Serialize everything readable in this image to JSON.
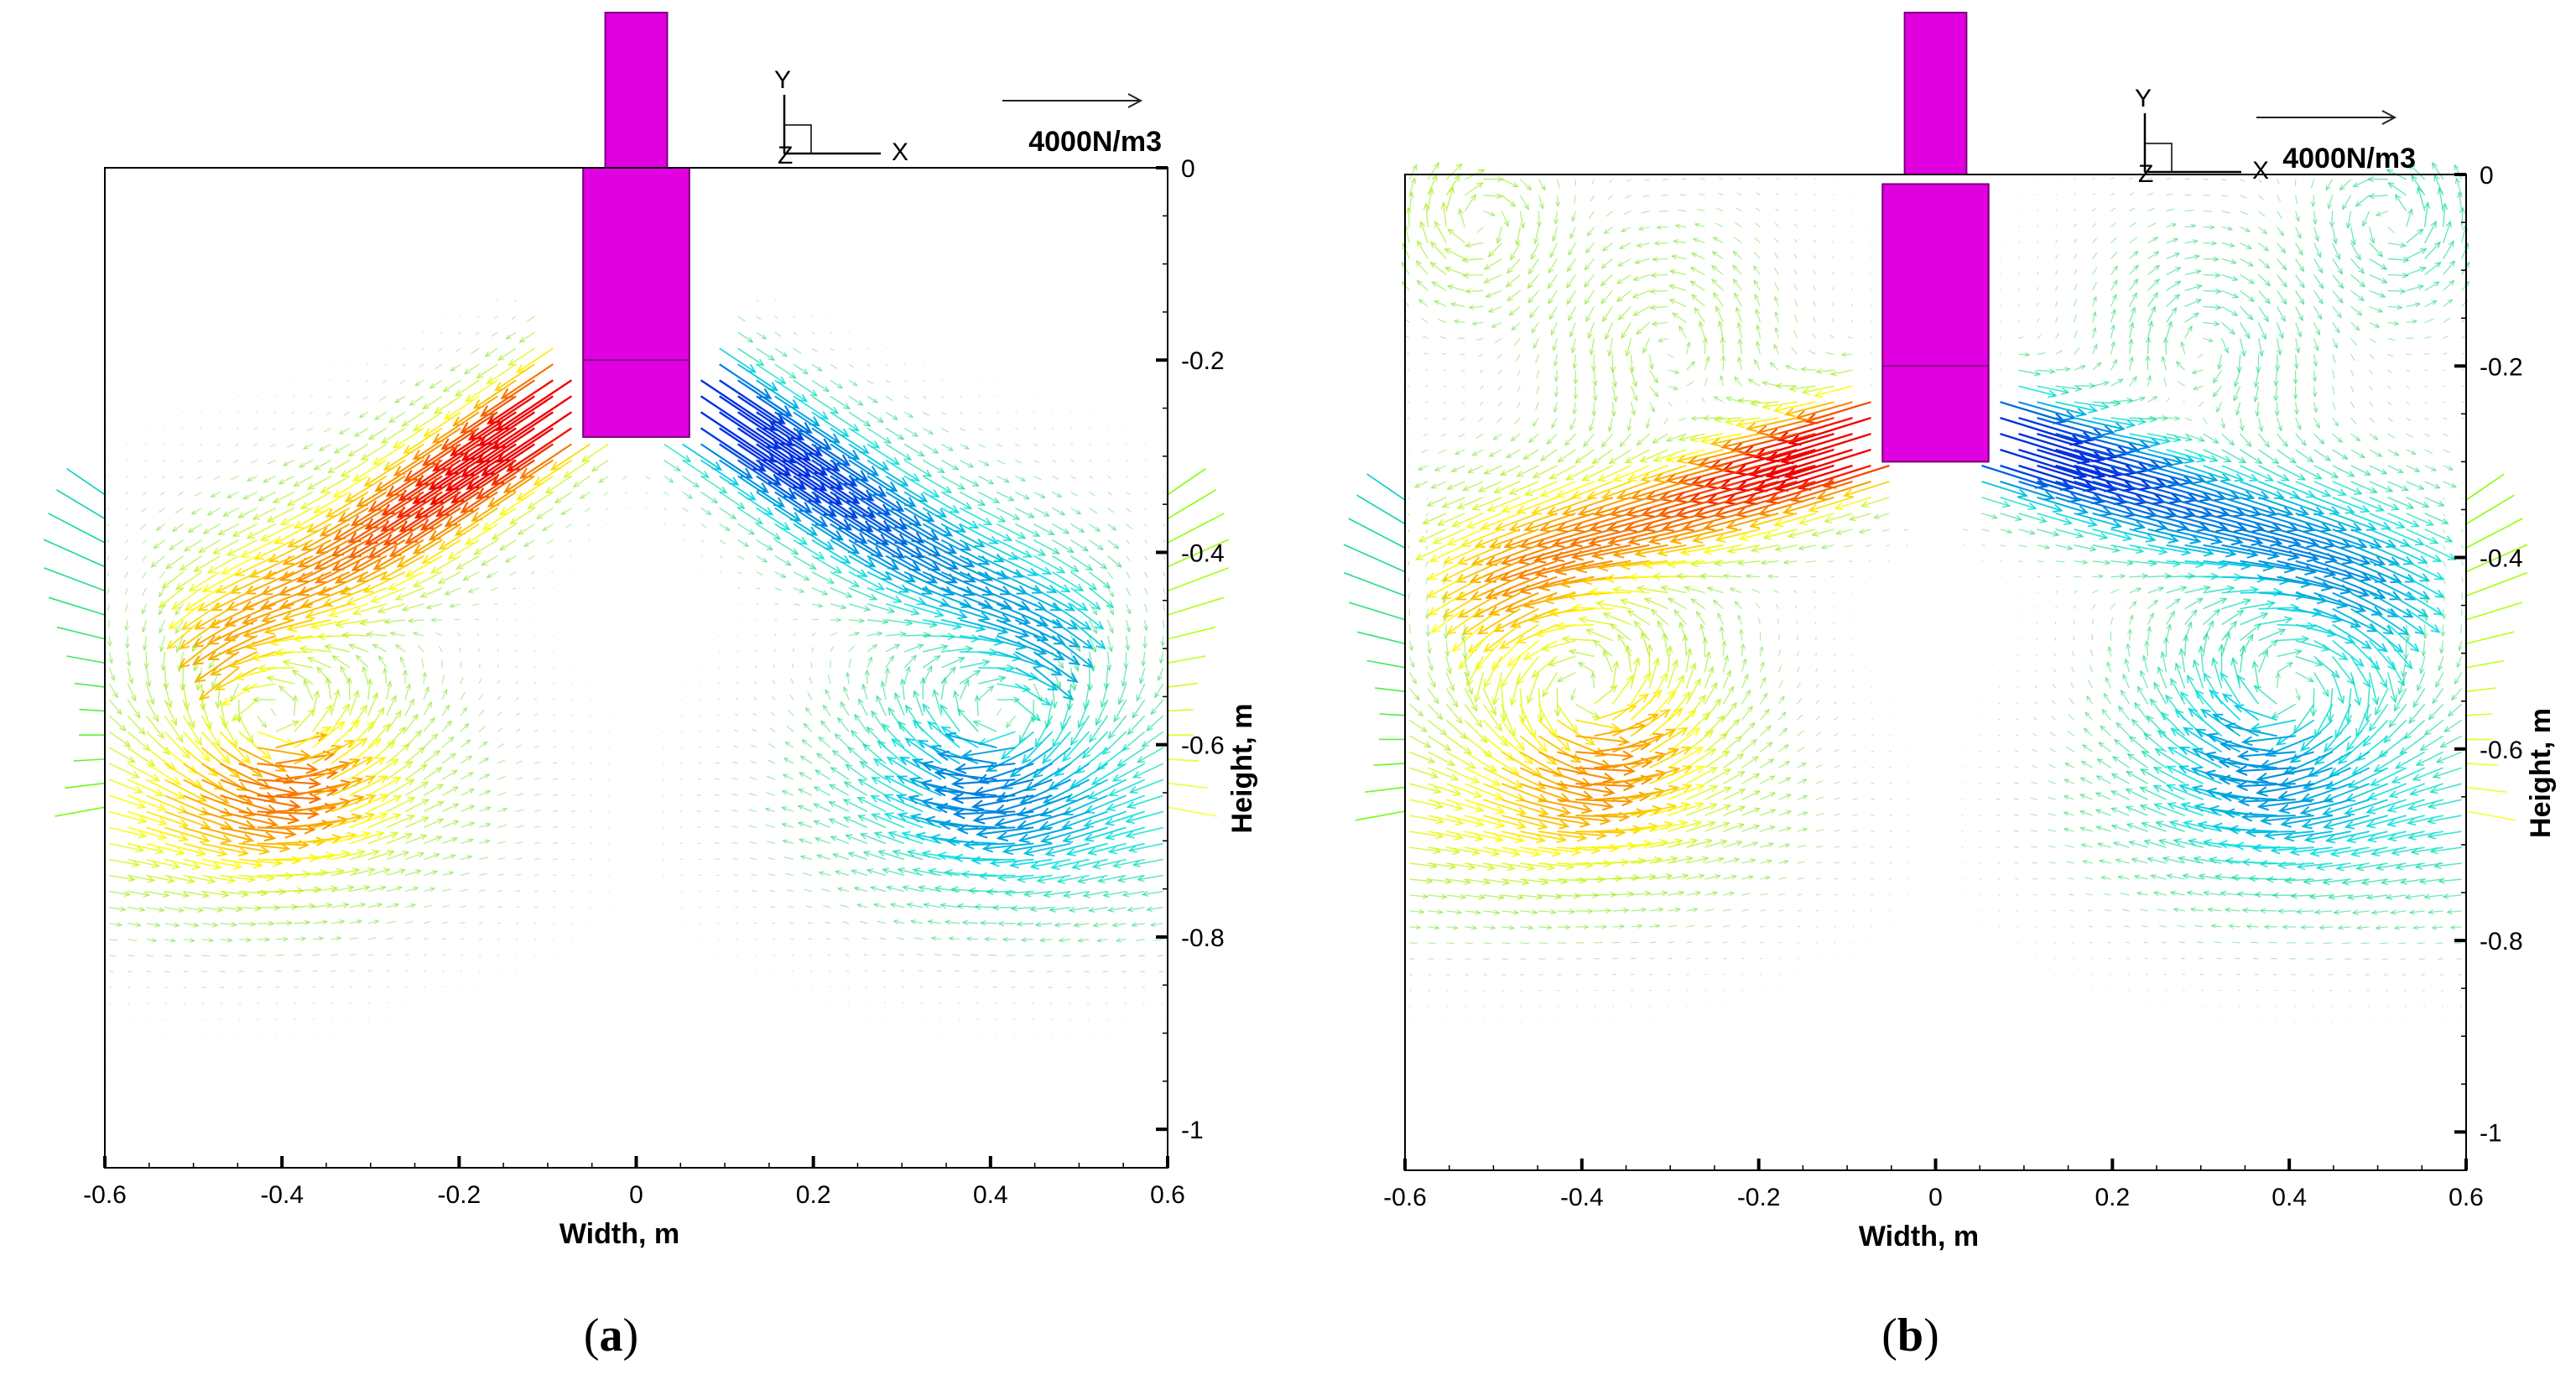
{
  "chart_data": [
    {
      "type": "vector-field",
      "panel": "a",
      "caption_open": "(",
      "caption_letter": "a",
      "caption_close": ")",
      "xlabel": "Width, m",
      "ylabel": "Height, m",
      "xlim": [
        -0.6,
        0.6
      ],
      "ylim": [
        -1.04,
        0
      ],
      "xticks": [
        "-0.6",
        "-0.4",
        "-0.2",
        "0",
        "0.2",
        "0.4",
        "0.6"
      ],
      "yticks": [
        "0",
        "-0.2",
        "-0.4",
        "-0.6",
        "-0.8",
        "-1"
      ],
      "xtick_values": [
        -0.6,
        -0.4,
        -0.2,
        0,
        0.2,
        0.4,
        0.6
      ],
      "ytick_values": [
        0,
        -0.2,
        -0.4,
        -0.6,
        -0.8,
        -1
      ],
      "reference_vector_label": "4000N/m3",
      "axis_triad": {
        "y": "Y",
        "x": "X",
        "z": "Z"
      },
      "electrode": {
        "upper_halfwidth_m": 0.035,
        "lower_halfwidth_m": 0.06,
        "bottom_m": -0.28,
        "step_m": 0
      },
      "jet": {
        "start_y_m": -0.23,
        "end_x_m": 0.45,
        "end_y_m": -0.49,
        "max_color": "#e00000",
        "min_color": "#0020d0"
      },
      "vortex_center_m": [
        0.42,
        -0.58
      ],
      "wall_vortex": false,
      "field_colors": {
        "low": "#7fff00",
        "mid": "#2cd02c",
        "high_neg": "#0030e0",
        "high_pos": "#f00000"
      }
    },
    {
      "type": "vector-field",
      "panel": "b",
      "caption_open": "(",
      "caption_letter": "b",
      "caption_close": ")",
      "xlabel": "Width, m",
      "ylabel": "Height, m",
      "xlim": [
        -0.6,
        0.6
      ],
      "ylim": [
        -1.04,
        0
      ],
      "xticks": [
        "-0.6",
        "-0.4",
        "-0.2",
        "0",
        "0.2",
        "0.4",
        "0.6"
      ],
      "yticks": [
        "0",
        "-0.2",
        "-0.4",
        "-0.6",
        "-0.8",
        "-1"
      ],
      "xtick_values": [
        -0.6,
        -0.4,
        -0.2,
        0,
        0.2,
        0.4,
        0.6
      ],
      "ytick_values": [
        0,
        -0.2,
        -0.4,
        -0.6,
        -0.8,
        -1
      ],
      "reference_vector_label": "4000N/m3",
      "axis_triad": {
        "y": "Y",
        "x": "X",
        "z": "Z"
      },
      "electrode": {
        "upper_halfwidth_m": 0.035,
        "lower_halfwidth_m": 0.06,
        "bottom_m": -0.3,
        "step_m": -0.01
      },
      "jet": {
        "start_y_m": -0.27,
        "end_x_m": 0.52,
        "end_y_m": -0.42,
        "max_color": "#e00000",
        "min_color": "#0020d0"
      },
      "vortex_center_m": [
        0.4,
        -0.55
      ],
      "wall_vortex": true,
      "field_colors": {
        "low": "#7fff00",
        "mid": "#2cd02c",
        "high_neg": "#0030e0",
        "high_pos": "#f00000"
      }
    }
  ]
}
